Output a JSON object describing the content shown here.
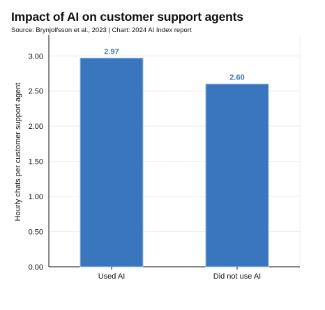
{
  "title": "Impact of AI on customer support agents",
  "subtitle": "Source: Brynjolfsson et al., 2023 | Chart: 2024 AI Index report",
  "chart_data": {
    "type": "bar",
    "title": "Impact of AI on customer support agents",
    "subtitle": "Source: Brynjolfsson et al., 2023 | Chart: 2024 AI Index report",
    "categories": [
      "Used AI",
      "Did not use AI"
    ],
    "values": [
      2.97,
      2.6
    ],
    "data_labels": [
      "2.97",
      "2.60"
    ],
    "xlabel": "",
    "ylabel": "Hourly chats per customer support agent",
    "ylim": [
      0,
      3.3
    ],
    "yticks": [
      0,
      0.5,
      1.0,
      1.5,
      2.0,
      2.5,
      3.0
    ],
    "ytick_labels": [
      "0.00",
      "0.50",
      "1.00",
      "1.50",
      "2.00",
      "2.50",
      "3.00"
    ],
    "grid": true,
    "bar_color": "#3a76be",
    "label_color": "#3b73b8"
  }
}
